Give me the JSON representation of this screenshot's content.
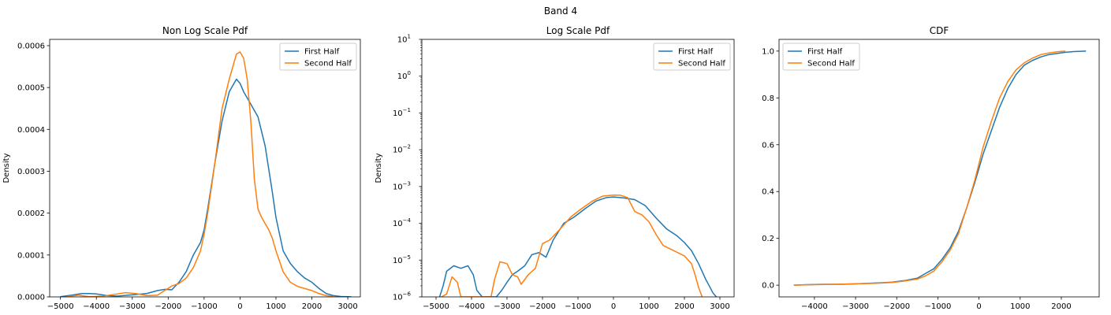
{
  "figure": {
    "suptitle": "Band 4"
  },
  "colors": {
    "first": "#1f77b4",
    "second": "#ff7f0e",
    "axis": "#000000",
    "legend_border": "#cccccc"
  },
  "chart_data": [
    {
      "type": "line",
      "title": "Non Log Scale Pdf",
      "xlabel": "",
      "ylabel": "Density",
      "xlim": [
        -5300,
        3350
      ],
      "ylim": [
        0,
        0.000615
      ],
      "xticks": [
        -5000,
        -4000,
        -3000,
        -2000,
        -1000,
        0,
        1000,
        2000,
        3000
      ],
      "xtick_labels": [
        "−5000",
        "−4000",
        "−3000",
        "−2000",
        "−1000",
        "0",
        "1000",
        "2000",
        "3000"
      ],
      "yticks": [
        0,
        0.0001,
        0.0002,
        0.0003,
        0.0004,
        0.0005,
        0.0006
      ],
      "ytick_labels": [
        "0.0000",
        "0.0001",
        "0.0002",
        "0.0003",
        "0.0004",
        "0.0005",
        "0.0006"
      ],
      "legend_loc": "upper right",
      "series": [
        {
          "name": "First Half",
          "x": [
            -5000,
            -4700,
            -4400,
            -4200,
            -4000,
            -3700,
            -3400,
            -3000,
            -2600,
            -2300,
            -2100,
            -1900,
            -1700,
            -1500,
            -1300,
            -1100,
            -1000,
            -900,
            -700,
            -500,
            -300,
            -100,
            0,
            100,
            300,
            500,
            700,
            900,
            1000,
            1200,
            1400,
            1600,
            1800,
            2000,
            2200,
            2400,
            2600,
            2800,
            3100
          ],
          "y": [
            5e-07,
            4e-06,
            8e-06,
            8e-06,
            7e-06,
            3e-06,
            2e-06,
            5e-06,
            8e-06,
            1.5e-05,
            1.8e-05,
            1.7e-05,
            3.5e-05,
            6e-05,
            0.0001,
            0.00013,
            0.00016,
            0.00021,
            0.00032,
            0.00042,
            0.00049,
            0.00052,
            0.00051,
            0.00049,
            0.00046,
            0.00043,
            0.00036,
            0.00025,
            0.00019,
            0.00011,
            8e-05,
            6e-05,
            4.5e-05,
            3.5e-05,
            2e-05,
            8e-06,
            3e-06,
            1e-06,
            2e-07
          ]
        },
        {
          "name": "Second Half",
          "x": [
            -4800,
            -4500,
            -4200,
            -3800,
            -3500,
            -3200,
            -2900,
            -2600,
            -2300,
            -2100,
            -1900,
            -1700,
            -1500,
            -1300,
            -1100,
            -1000,
            -900,
            -700,
            -500,
            -300,
            -100,
            0,
            100,
            200,
            300,
            400,
            500,
            600,
            700,
            800,
            900,
            1000,
            1200,
            1400,
            1600,
            1800,
            2000,
            2200,
            2400,
            2600
          ],
          "y": [
            1e-06,
            4e-06,
            5e-07,
            2e-06,
            6e-06,
            1e-05,
            8e-06,
            3e-06,
            4e-06,
            1.5e-05,
            2.6e-05,
            3.2e-05,
            4.5e-05,
            7e-05,
            0.00011,
            0.00015,
            0.0002,
            0.00032,
            0.00045,
            0.00052,
            0.00058,
            0.000585,
            0.00057,
            0.00052,
            0.00042,
            0.00028,
            0.00021,
            0.00019,
            0.000175,
            0.00016,
            0.00014,
            0.00011,
            6e-05,
            3.5e-05,
            2.5e-05,
            2e-05,
            1.5e-05,
            8e-06,
            3e-06,
            1e-06
          ]
        }
      ]
    },
    {
      "type": "line",
      "title": "Log Scale Pdf",
      "xlabel": "",
      "ylabel": "Density",
      "yscale": "log",
      "xlim": [
        -5400,
        3400
      ],
      "ylim": [
        1e-06,
        10
      ],
      "xticks": [
        -5000,
        -4000,
        -3000,
        -2000,
        -1000,
        0,
        1000,
        2000,
        3000
      ],
      "xtick_labels": [
        "−5000",
        "−4000",
        "−3000",
        "−2000",
        "−1000",
        "0",
        "1000",
        "2000",
        "3000"
      ],
      "yticks": [
        1e-06,
        1e-05,
        0.0001,
        0.001,
        0.01,
        0.1,
        1,
        10
      ],
      "ytick_bases": [
        "10",
        "10",
        "10",
        "10",
        "10",
        "10",
        "10",
        "10"
      ],
      "ytick_exps": [
        "−6",
        "−5",
        "−4",
        "−3",
        "−2",
        "−1",
        "0",
        "1"
      ],
      "legend_loc": "upper right",
      "series": [
        {
          "name": "First Half",
          "x": [
            -4900,
            -4800,
            -4700,
            -4500,
            -4300,
            -4100,
            -3950,
            -3850,
            -3700,
            -3300,
            -3150,
            -3000,
            -2850,
            -2700,
            -2500,
            -2300,
            -2100,
            -1900,
            -1700,
            -1400,
            -1100,
            -800,
            -500,
            -200,
            0,
            300,
            600,
            900,
            1200,
            1500,
            1800,
            2000,
            2200,
            2400,
            2600,
            2700,
            2800,
            2900
          ],
          "y": [
            1e-06,
            2e-06,
            5e-06,
            7e-06,
            6e-06,
            7e-06,
            4e-06,
            1.5e-06,
            1e-06,
            1e-06,
            1.5e-06,
            2.5e-06,
            4e-06,
            5e-06,
            7e-06,
            1.4e-05,
            1.6e-05,
            1.2e-05,
            3.5e-05,
            0.0001,
            0.00015,
            0.00025,
            0.0004,
            0.0005,
            0.00052,
            0.00049,
            0.00044,
            0.0003,
            0.00014,
            7e-05,
            4.5e-05,
            3e-05,
            1.8e-05,
            8e-06,
            3e-06,
            2e-06,
            1.3e-06,
            1e-06
          ]
        },
        {
          "name": "Second Half",
          "x": [
            -4850,
            -4700,
            -4550,
            -4400,
            -4300,
            -4200,
            -3450,
            -3350,
            -3200,
            -3000,
            -2850,
            -2700,
            -2600,
            -2400,
            -2200,
            -2000,
            -1800,
            -1500,
            -1200,
            -900,
            -600,
            -300,
            0,
            200,
            400,
            600,
            800,
            1000,
            1200,
            1400,
            1700,
            2000,
            2200,
            2300,
            2400,
            2500
          ],
          "y": [
            1e-06,
            1.2e-06,
            3.5e-06,
            2.5e-06,
            1e-06,
            1e-06,
            1e-06,
            3e-06,
            9e-06,
            8e-06,
            4e-06,
            3.5e-06,
            2.2e-06,
            4e-06,
            6e-06,
            2.8e-05,
            3.5e-05,
            7e-05,
            0.00015,
            0.00025,
            0.0004,
            0.00055,
            0.000585,
            0.00058,
            0.0005,
            0.00021,
            0.00017,
            0.00011,
            5e-05,
            2.5e-05,
            1.8e-05,
            1.3e-05,
            8e-06,
            4e-06,
            1.8e-06,
            1e-06
          ]
        }
      ]
    },
    {
      "type": "line",
      "title": "CDF",
      "xlabel": "",
      "ylabel": "",
      "xlim": [
        -4860,
        2920
      ],
      "ylim": [
        -0.05,
        1.05
      ],
      "xticks": [
        -4000,
        -3000,
        -2000,
        -1000,
        0,
        1000,
        2000
      ],
      "xtick_labels": [
        "−4000",
        "−3000",
        "−2000",
        "−1000",
        "0",
        "1000",
        "2000"
      ],
      "yticks": [
        0,
        0.2,
        0.4,
        0.6,
        0.8,
        1.0
      ],
      "ytick_labels": [
        "0.0",
        "0.2",
        "0.4",
        "0.6",
        "0.8",
        "1.0"
      ],
      "legend_loc": "upper left",
      "series": [
        {
          "name": "First Half",
          "x": [
            -4500,
            -4200,
            -3800,
            -3300,
            -2800,
            -2400,
            -2100,
            -1800,
            -1500,
            -1300,
            -1100,
            -900,
            -700,
            -500,
            -300,
            -100,
            0,
            100,
            300,
            500,
            700,
            900,
            1100,
            1300,
            1500,
            1700,
            1900,
            2100,
            2300,
            2600
          ],
          "y": [
            0.0,
            0.002,
            0.004,
            0.004,
            0.007,
            0.01,
            0.013,
            0.02,
            0.03,
            0.05,
            0.07,
            0.11,
            0.16,
            0.23,
            0.33,
            0.44,
            0.5,
            0.56,
            0.66,
            0.76,
            0.84,
            0.9,
            0.94,
            0.96,
            0.975,
            0.985,
            0.99,
            0.995,
            0.998,
            1.0
          ]
        },
        {
          "name": "Second Half",
          "x": [
            -4500,
            -4000,
            -3500,
            -3000,
            -2500,
            -2100,
            -1800,
            -1500,
            -1300,
            -1100,
            -900,
            -700,
            -500,
            -300,
            -100,
            0,
            100,
            300,
            500,
            700,
            900,
            1100,
            1300,
            1500,
            1700,
            1900,
            2100
          ],
          "y": [
            0.0,
            0.002,
            0.004,
            0.006,
            0.008,
            0.012,
            0.018,
            0.026,
            0.04,
            0.06,
            0.1,
            0.15,
            0.22,
            0.33,
            0.45,
            0.52,
            0.59,
            0.7,
            0.8,
            0.87,
            0.92,
            0.95,
            0.97,
            0.985,
            0.992,
            0.997,
            1.0
          ]
        }
      ]
    }
  ]
}
